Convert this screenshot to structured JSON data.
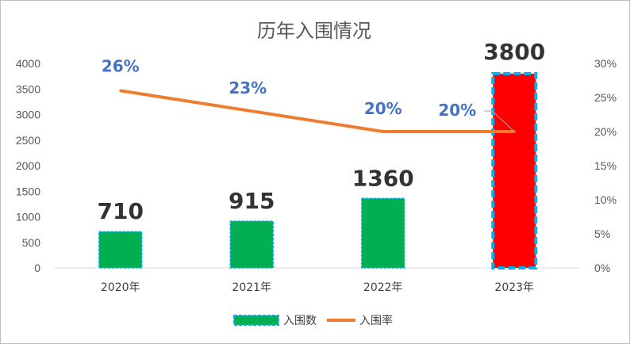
{
  "chart_data": {
    "type": "bar",
    "title": "历年入围情况",
    "categories": [
      "2020年",
      "2021年",
      "2022年",
      "2023年"
    ],
    "series": [
      {
        "name": "入围数",
        "type": "bar",
        "axis": "left",
        "values": [
          710,
          915,
          1360,
          3800
        ],
        "color": "#00b050",
        "border_color": "#00b0f0",
        "highlight_index": 3,
        "highlight_color": "#ff0000"
      },
      {
        "name": "入围率",
        "type": "line",
        "axis": "right",
        "values": [
          0.26,
          0.23,
          0.2,
          0.2
        ],
        "labels": [
          "26%",
          "23%",
          "20%",
          "20%"
        ],
        "color": "#ed7d31"
      }
    ],
    "bar_labels": [
      "710",
      "915",
      "1360",
      "3800"
    ],
    "y_left": {
      "min": 0,
      "max": 4000,
      "ticks": [
        "0",
        "500",
        "1000",
        "1500",
        "2000",
        "2500",
        "3000",
        "3500",
        "4000"
      ]
    },
    "y_right": {
      "min": 0,
      "max": 0.3,
      "ticks": [
        "0%",
        "5%",
        "10%",
        "15%",
        "20%",
        "25%",
        "30%"
      ]
    },
    "grid": false,
    "legend_position": "bottom",
    "legend": [
      {
        "label": "入围数",
        "kind": "bar"
      },
      {
        "label": "入围率",
        "kind": "line"
      }
    ]
  }
}
